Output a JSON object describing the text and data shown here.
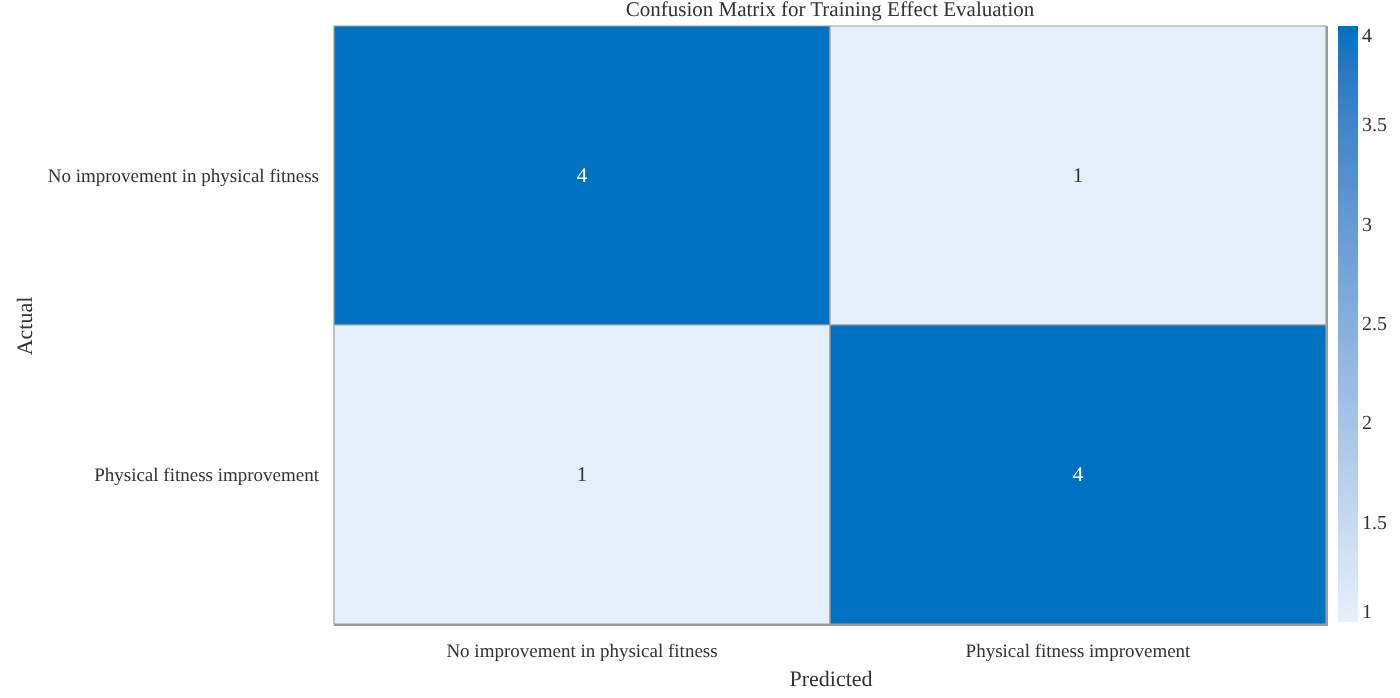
{
  "chart_data": {
    "type": "heatmap",
    "title": "Confusion Matrix for Training Effect Evaluation",
    "xlabel": "Predicted",
    "ylabel": "Actual",
    "categories": [
      "No improvement in physical fitness",
      "Physical fitness improvement"
    ],
    "y_categories": [
      "No improvement in physical fitness",
      "Physical fitness improvement"
    ],
    "cells": [
      [
        4,
        1
      ],
      [
        1,
        4
      ]
    ],
    "data_labels": true,
    "colors": [
      "#e6f0fa",
      "#0070c0"
    ],
    "clim": [
      1,
      4
    ],
    "cticks": [
      1,
      1.5,
      2,
      2.5,
      3,
      3.5,
      4
    ]
  }
}
